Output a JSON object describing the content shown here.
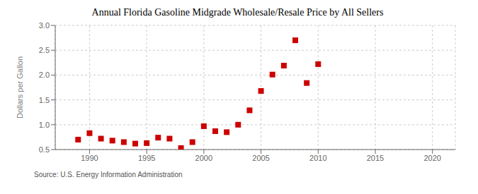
{
  "chart_data": {
    "type": "scatter",
    "title": "Annual Florida Gasoline Midgrade Wholesale/Resale Price by All Sellers",
    "ylabel": "Dollars per Gallon",
    "source": "Source: U.S. Energy Information Administration",
    "x": [
      1989,
      1990,
      1991,
      1992,
      1993,
      1994,
      1995,
      1996,
      1997,
      1998,
      1999,
      2000,
      2001,
      2002,
      2003,
      2004,
      2005,
      2006,
      2007,
      2008,
      2009,
      2010
    ],
    "values": [
      0.7,
      0.83,
      0.72,
      0.68,
      0.65,
      0.62,
      0.63,
      0.74,
      0.72,
      0.53,
      0.65,
      0.97,
      0.87,
      0.85,
      1.0,
      1.29,
      1.68,
      2.01,
      2.19,
      2.7,
      1.84,
      2.22
    ],
    "color": "#cc0000",
    "marker": "square",
    "xlim": [
      1987,
      2022
    ],
    "ylim": [
      0.5,
      3.0
    ],
    "xticks": [
      1990,
      1995,
      2000,
      2005,
      2010,
      2015,
      2020
    ],
    "yticks": [
      0.5,
      {
        "value": 1.0,
        "label": "1.0"
      },
      1.5,
      {
        "value": 2.0,
        "label": "2.0"
      },
      2.5,
      {
        "value": 3.0,
        "label": "3.0"
      }
    ],
    "grid": true
  }
}
